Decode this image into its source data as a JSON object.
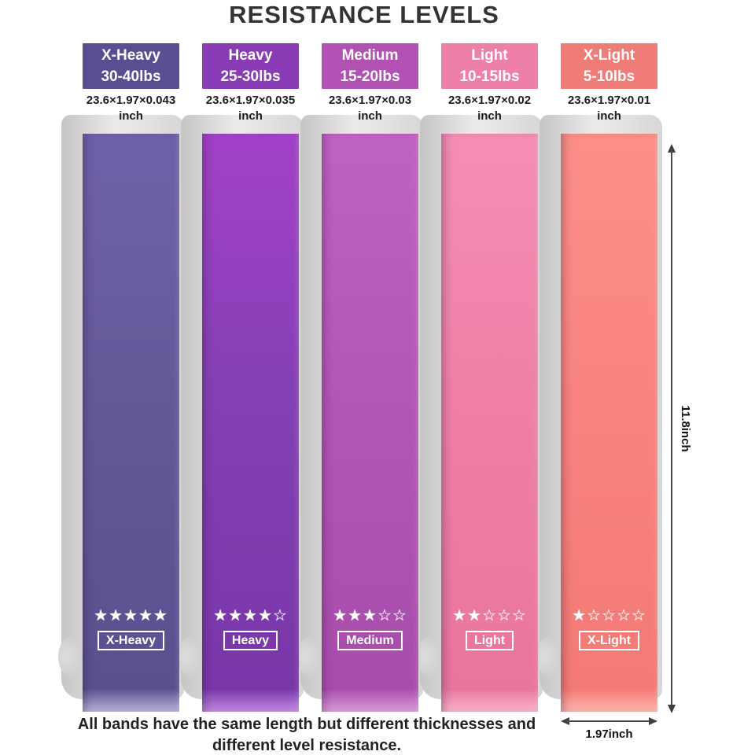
{
  "title": "RESISTANCE LEVELS",
  "caption": {
    "line1": "All bands have the same length but different thicknesses and",
    "line2": "different level resistance."
  },
  "measurements": {
    "band_length": "11.8inch",
    "band_width": "1.97inch"
  },
  "bands": [
    {
      "name": "X-Heavy",
      "weight_range": "30-40lbs",
      "dimensions": "23.6×1.97×0.043",
      "unit": "inch",
      "stars": "★★★★★",
      "stars_filled": 5,
      "stars_total": 5,
      "tag": "X-Heavy",
      "colors": {
        "header": "#5b4d92",
        "band_top": "#6f61a8",
        "band_mid": "#655999",
        "band_bottom": "#5b508f",
        "fold": "#b9b2d8"
      }
    },
    {
      "name": "Heavy",
      "weight_range": "25-30lbs",
      "dimensions": "23.6×1.97×0.035",
      "unit": "inch",
      "stars": "★★★★☆",
      "stars_filled": 4,
      "stars_total": 5,
      "tag": "Heavy",
      "colors": {
        "header": "#8a3cb6",
        "band_top": "#a341c8",
        "band_mid": "#8440b4",
        "band_bottom": "#7936a9",
        "fold": "#c18ce2"
      }
    },
    {
      "name": "Medium",
      "weight_range": "15-20lbs",
      "dimensions": "23.6×1.97×0.03",
      "unit": "inch",
      "stars": "★★★☆☆",
      "stars_filled": 3,
      "stars_total": 5,
      "tag": "Medium",
      "colors": {
        "header": "#b151b3",
        "band_top": "#c062c2",
        "band_mid": "#b257b5",
        "band_bottom": "#a84dab",
        "fold": "#d99ddb"
      }
    },
    {
      "name": "Light",
      "weight_range": "10-15lbs",
      "dimensions": "23.6×1.97×0.02",
      "unit": "inch",
      "stars": "★★☆☆☆",
      "stars_filled": 2,
      "stars_total": 5,
      "tag": "Light",
      "colors": {
        "header": "#ee7fa8",
        "band_top": "#f48db4",
        "band_mid": "#f080a8",
        "band_bottom": "#e9759e",
        "fold": "#f8b5cb"
      }
    },
    {
      "name": "X-Light",
      "weight_range": "5-10lbs",
      "dimensions": "23.6×1.97×0.01",
      "unit": "inch",
      "stars": "★☆☆☆☆",
      "stars_filled": 1,
      "stars_total": 5,
      "tag": "X-Light",
      "colors": {
        "header": "#ef7c76",
        "band_top": "#fc8e87",
        "band_mid": "#f98480",
        "band_bottom": "#f37a75",
        "fold": "#fdb5ae"
      }
    }
  ]
}
